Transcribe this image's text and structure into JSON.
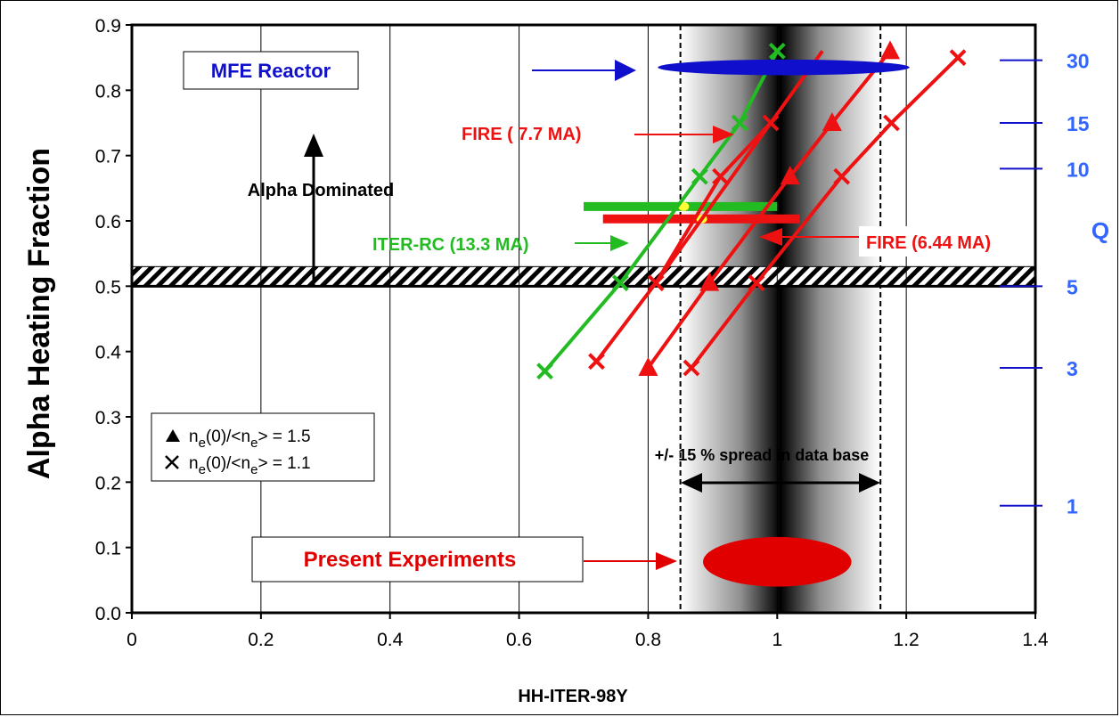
{
  "chart_data": {
    "type": "line",
    "title": "",
    "xlabel": "HH-ITER-98Y",
    "ylabel": "Alpha Heating Fraction",
    "y2label": "Q",
    "xlim": [
      0,
      1.4
    ],
    "ylim": [
      0,
      0.9
    ],
    "x_ticks": [
      {
        "v": 0,
        "label": "0"
      },
      {
        "v": 0.2,
        "label": "0.2"
      },
      {
        "v": 0.4,
        "label": "0.4"
      },
      {
        "v": 0.6,
        "label": "0.6"
      },
      {
        "v": 0.8,
        "label": "0.8"
      },
      {
        "v": 1,
        "label": "1"
      },
      {
        "v": 1.2,
        "label": "1.2"
      },
      {
        "v": 1.4,
        "label": "1.4"
      }
    ],
    "y_ticks": [
      {
        "v": 0,
        "label": "0.0"
      },
      {
        "v": 0.1,
        "label": "0.1"
      },
      {
        "v": 0.2,
        "label": "0.2"
      },
      {
        "v": 0.3,
        "label": "0.3"
      },
      {
        "v": 0.4,
        "label": "0.4"
      },
      {
        "v": 0.5,
        "label": "0.5"
      },
      {
        "v": 0.6,
        "label": "0.6"
      },
      {
        "v": 0.7,
        "label": "0.7"
      },
      {
        "v": 0.8,
        "label": "0.8"
      },
      {
        "v": 0.9,
        "label": "0.9"
      }
    ],
    "q_ticks": [
      {
        "v": 0.846,
        "label": "30"
      },
      {
        "v": 0.75,
        "label": "15"
      },
      {
        "v": 0.68,
        "label": "10"
      },
      {
        "v": 0.5,
        "label": "5"
      },
      {
        "v": 0.375,
        "label": "3"
      },
      {
        "v": 0.164,
        "label": "1"
      }
    ],
    "series": [
      {
        "name": "ITER-RC (13.3 MA)",
        "color": "#22bb22",
        "marker": "x",
        "points": [
          [
            0.64,
            0.37
          ],
          [
            0.757,
            0.505
          ],
          [
            0.88,
            0.668
          ],
          [
            0.942,
            0.75
          ],
          [
            1.0,
            0.86
          ]
        ]
      },
      {
        "name": "FIRE (7.7 MA)",
        "color": "#ee1111",
        "marker": "x",
        "points": [
          [
            0.72,
            0.385
          ],
          [
            0.812,
            0.505
          ],
          [
            0.912,
            0.668
          ],
          [
            0.99,
            0.75
          ]
        ]
      },
      {
        "color": "#ee1111",
        "marker": "line",
        "points": [
          [
            0.812,
            0.505
          ],
          [
            0.99,
            0.75
          ],
          [
            1.07,
            0.86
          ]
        ]
      },
      {
        "color": "#ee1111",
        "marker": "triangle",
        "points": [
          [
            0.8,
            0.375
          ],
          [
            0.895,
            0.505
          ],
          [
            1.02,
            0.668
          ],
          [
            1.085,
            0.75
          ],
          [
            1.175,
            0.86
          ]
        ]
      },
      {
        "name": "FIRE (6.44 MA)",
        "color": "#ee1111",
        "marker": "x",
        "points": [
          [
            0.867,
            0.375
          ],
          [
            0.968,
            0.505
          ],
          [
            1.1,
            0.668
          ],
          [
            1.177,
            0.75
          ],
          [
            1.28,
            0.85
          ]
        ]
      }
    ],
    "ignition_line_y": 0.5,
    "horizontal_bars": [
      {
        "series": "ITER-RC",
        "color": "#22bb22",
        "x": [
          0.7,
          1.0
        ],
        "y": 0.622,
        "dot_x": 0.855
      },
      {
        "series": "FIRE",
        "color": "#ee1111",
        "x": [
          0.73,
          1.035
        ],
        "y": 0.603,
        "dot_x": 0.883
      }
    ],
    "spread_band": {
      "center": 1.0,
      "low": 0.85,
      "high": 1.16
    },
    "ellipses": [
      {
        "label": "MFE Reactor",
        "color": "#1010cc",
        "cx": 1.01,
        "cy": 0.835,
        "rx": 0.195,
        "ry": 0.012
      },
      {
        "label": "Present Experiments",
        "color": "#e00000",
        "cx": 1.0,
        "cy": 0.078,
        "rx": 0.115,
        "ry": 0.038
      }
    ],
    "legend": {
      "placement": "lower-left",
      "entries": [
        {
          "marker": "triangle",
          "main": "n",
          "sub": "e",
          "mid": "(0)/<n",
          "sub2": "e",
          "tail": "> = 1.5"
        },
        {
          "marker": "x",
          "main": "n",
          "sub": "e",
          "mid": "(0)/<n",
          "sub2": "e",
          "tail": "> = 1.1"
        }
      ]
    },
    "annotations": {
      "mfe": "MFE Reactor",
      "fire77": "FIRE ( 7.7 MA)",
      "alpha_dom": "Alpha Dominated",
      "iter_rc": "ITER-RC (13.3 MA)",
      "fire644": "FIRE (6.44 MA)",
      "spread": "+/- 15 % spread in data base",
      "present": "Present Experiments"
    }
  }
}
